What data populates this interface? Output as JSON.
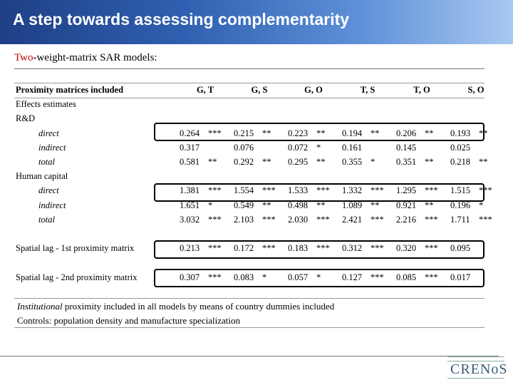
{
  "slide": {
    "title": "A step towards assessing complementarity",
    "subtitle_highlight": "Two",
    "subtitle_rest": "-weight-matrix SAR models:"
  },
  "table": {
    "header_label": "Proximity matrices included",
    "columns": [
      "G, T",
      "G, S",
      "G, O",
      "T, S",
      "T, O",
      "S, O"
    ],
    "rows": [
      {
        "label": "Effects estimates",
        "indent": false,
        "cells": []
      },
      {
        "label": "R&D",
        "indent": false,
        "cells": []
      },
      {
        "label": "direct",
        "indent": true,
        "cells": [
          [
            "0.264",
            "***"
          ],
          [
            "0.215",
            "**"
          ],
          [
            "0.223",
            "**"
          ],
          [
            "0.194",
            "**"
          ],
          [
            "0.206",
            "**"
          ],
          [
            "0.193",
            "**"
          ]
        ]
      },
      {
        "label": "indirect",
        "indent": true,
        "cells": [
          [
            "0.317",
            ""
          ],
          [
            "0.076",
            ""
          ],
          [
            "0.072",
            "*"
          ],
          [
            "0.161",
            ""
          ],
          [
            "0.145",
            ""
          ],
          [
            "0.025",
            ""
          ]
        ]
      },
      {
        "label": "total",
        "indent": true,
        "cells": [
          [
            "0.581",
            "**"
          ],
          [
            "0.292",
            "**"
          ],
          [
            "0.295",
            "**"
          ],
          [
            "0.355",
            "*"
          ],
          [
            "0.351",
            "**"
          ],
          [
            "0.218",
            "**"
          ]
        ]
      },
      {
        "label": "Human capital",
        "indent": false,
        "cells": []
      },
      {
        "label": "direct",
        "indent": true,
        "cells": [
          [
            "1.381",
            "***"
          ],
          [
            "1.554",
            "***"
          ],
          [
            "1.533",
            "***"
          ],
          [
            "1.332",
            "***"
          ],
          [
            "1.295",
            "***"
          ],
          [
            "1.515",
            "***"
          ]
        ]
      },
      {
        "label": "indirect",
        "indent": true,
        "cells": [
          [
            "1.651",
            "*"
          ],
          [
            "0.549",
            "**"
          ],
          [
            "0.498",
            "**"
          ],
          [
            "1.089",
            "**"
          ],
          [
            "0.921",
            "**"
          ],
          [
            "0.196",
            "*"
          ]
        ]
      },
      {
        "label": "total",
        "indent": true,
        "cells": [
          [
            "3.032",
            "***"
          ],
          [
            "2.103",
            "***"
          ],
          [
            "2.030",
            "***"
          ],
          [
            "2.421",
            "***"
          ],
          [
            "2.216",
            "***"
          ],
          [
            "1.711",
            "***"
          ]
        ]
      },
      {
        "label": "",
        "indent": false,
        "cells": []
      },
      {
        "label": "Spatial lag - 1st proximity matrix",
        "indent": false,
        "cells": [
          [
            "0.213",
            "***"
          ],
          [
            "0.172",
            "***"
          ],
          [
            "0.183",
            "***"
          ],
          [
            "0.312",
            "***"
          ],
          [
            "0.320",
            "***"
          ],
          [
            "0.095",
            ""
          ]
        ]
      },
      {
        "label": "",
        "indent": false,
        "cells": []
      },
      {
        "label": "Spatial lag - 2nd proximity matrix",
        "indent": false,
        "cells": [
          [
            "0.307",
            "***"
          ],
          [
            "0.083",
            "*"
          ],
          [
            "0.057",
            "*"
          ],
          [
            "0.127",
            "***"
          ],
          [
            "0.085",
            "***"
          ],
          [
            "0.017",
            ""
          ]
        ]
      }
    ],
    "note1_italic": "Institutional",
    "note1_rest": " proximity included in all models by means of country dummies included",
    "note2": "Controls: population density and manufacture specialization"
  },
  "logo": {
    "text": "CRENoS"
  }
}
